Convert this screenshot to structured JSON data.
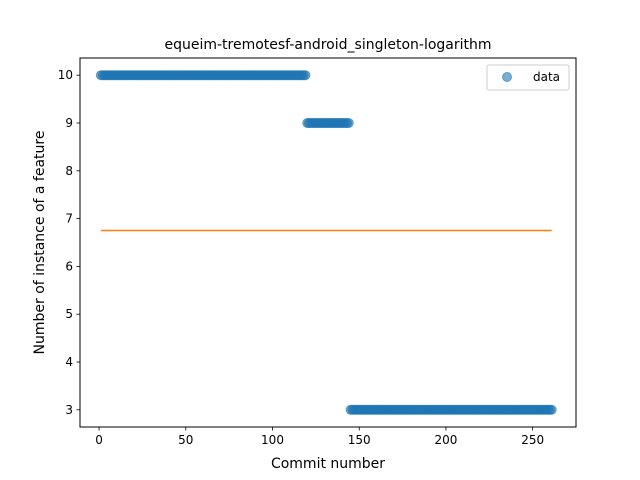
{
  "chart_data": {
    "type": "scatter",
    "title": "equeim-tremotesf-android_singleton-logarithm",
    "xlabel": "Commit number",
    "ylabel": "Number of instance of a feature",
    "xlim": [
      -11,
      275
    ],
    "ylim": [
      2.64,
      10.36
    ],
    "xticks": [
      0,
      50,
      100,
      150,
      200,
      250
    ],
    "yticks": [
      3,
      4,
      5,
      6,
      7,
      8,
      9,
      10
    ],
    "grid": false,
    "legend_position": "top-right",
    "series": [
      {
        "name": "data",
        "kind": "scatter",
        "color": "#1f77b4",
        "segments": [
          {
            "x_start": 1,
            "x_end": 119,
            "y": 10
          },
          {
            "x_start": 120,
            "x_end": 144,
            "y": 9
          },
          {
            "x_start": 145,
            "x_end": 261,
            "y": 3
          }
        ]
      },
      {
        "kind": "line",
        "color": "#ff7f0e",
        "x": [
          1,
          261
        ],
        "y": [
          6.75,
          6.75
        ]
      }
    ]
  }
}
